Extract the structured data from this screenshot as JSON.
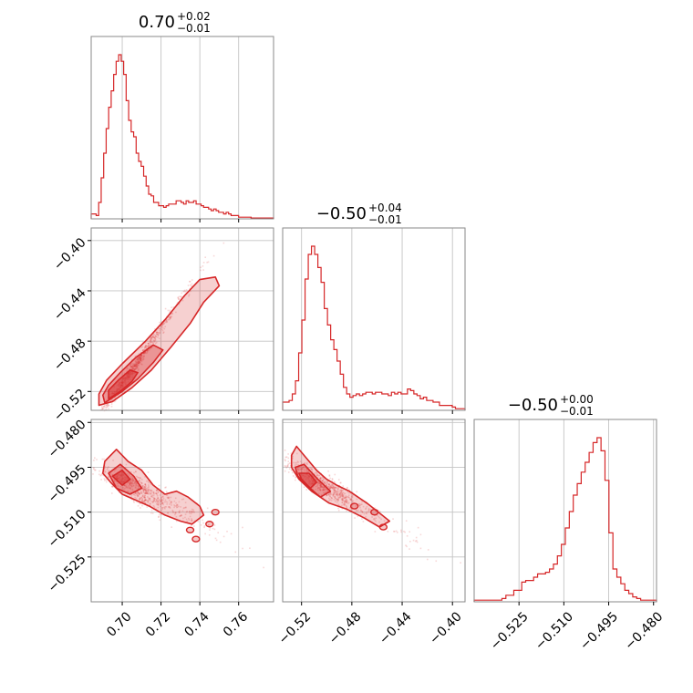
{
  "chart_data": {
    "type": "corner",
    "color": "#d62728",
    "parameters": [
      {
        "title": {
          "median": "0.70",
          "plus": "+0.02",
          "minus": "−0.01"
        },
        "range": [
          0.684,
          0.778
        ],
        "ticks": [
          0.7,
          0.72,
          0.74,
          0.76
        ],
        "tick_labels": [
          "0.70",
          "0.72",
          "0.74",
          "0.76"
        ]
      },
      {
        "title": {
          "median": "−0.50",
          "plus": "+0.04",
          "minus": "−0.01"
        },
        "range": [
          -0.535,
          -0.39
        ],
        "ticks": [
          -0.52,
          -0.48,
          -0.44,
          -0.4
        ],
        "tick_labels": [
          "−0.52",
          "−0.48",
          "−0.44",
          "−0.40"
        ]
      },
      {
        "title": {
          "median": "−0.50",
          "plus": "+0.00",
          "minus": "−0.01"
        },
        "range": [
          -0.54,
          -0.479
        ],
        "ticks": [
          -0.525,
          -0.51,
          -0.495,
          -0.48
        ],
        "tick_labels": [
          "−0.525",
          "−0.510",
          "−0.495",
          "−0.480"
        ]
      }
    ],
    "histograms": [
      {
        "param": 0,
        "counts": [
          0.03,
          0.03,
          0.02,
          0.1,
          0.25,
          0.4,
          0.55,
          0.68,
          0.78,
          0.88,
          0.96,
          1.0,
          0.96,
          0.88,
          0.72,
          0.6,
          0.53,
          0.5,
          0.4,
          0.35,
          0.32,
          0.26,
          0.2,
          0.15,
          0.14,
          0.1,
          0.1,
          0.08,
          0.08,
          0.07,
          0.08,
          0.09,
          0.09,
          0.09,
          0.11,
          0.11,
          0.1,
          0.09,
          0.11,
          0.1,
          0.1,
          0.11,
          0.09,
          0.09,
          0.08,
          0.07,
          0.07,
          0.06,
          0.05,
          0.06,
          0.05,
          0.04,
          0.04,
          0.03,
          0.04,
          0.03,
          0.02,
          0.02,
          0.02,
          0.01,
          0.01,
          0.01,
          0.01,
          0.01,
          0.005,
          0.005,
          0.005,
          0.005,
          0.005,
          0.005,
          0.005,
          0.005,
          0.005
        ]
      },
      {
        "param": 1,
        "counts": [
          0.05,
          0.05,
          0.06,
          0.1,
          0.18,
          0.35,
          0.55,
          0.8,
          0.95,
          1.0,
          0.95,
          0.87,
          0.78,
          0.62,
          0.52,
          0.43,
          0.37,
          0.3,
          0.22,
          0.14,
          0.1,
          0.08,
          0.09,
          0.1,
          0.09,
          0.1,
          0.11,
          0.11,
          0.1,
          0.11,
          0.11,
          0.1,
          0.1,
          0.09,
          0.11,
          0.1,
          0.11,
          0.1,
          0.1,
          0.13,
          0.12,
          0.1,
          0.09,
          0.07,
          0.08,
          0.06,
          0.06,
          0.05,
          0.05,
          0.03,
          0.03,
          0.03,
          0.03,
          0.02,
          0.01,
          0.01,
          0.01
        ]
      },
      {
        "param": 2,
        "counts": [
          0.01,
          0.01,
          0.01,
          0.01,
          0.01,
          0.01,
          0.01,
          0.02,
          0.04,
          0.04,
          0.07,
          0.07,
          0.12,
          0.13,
          0.13,
          0.15,
          0.17,
          0.17,
          0.18,
          0.2,
          0.23,
          0.28,
          0.35,
          0.45,
          0.55,
          0.65,
          0.72,
          0.79,
          0.85,
          0.91,
          0.97,
          1.0,
          0.92,
          0.74,
          0.42,
          0.2,
          0.15,
          0.11,
          0.07,
          0.05,
          0.03,
          0.02,
          0.01,
          0.01,
          0.01,
          0.01
        ]
      }
    ],
    "joints": [
      {
        "x_param": 0,
        "y_param": 1,
        "outer_contour": [
          [
            0.688,
            -0.531
          ],
          [
            0.695,
            -0.528
          ],
          [
            0.705,
            -0.517
          ],
          [
            0.715,
            -0.503
          ],
          [
            0.725,
            -0.485
          ],
          [
            0.735,
            -0.466
          ],
          [
            0.742,
            -0.449
          ],
          [
            0.75,
            -0.436
          ],
          [
            0.748,
            -0.429
          ],
          [
            0.74,
            -0.431
          ],
          [
            0.732,
            -0.444
          ],
          [
            0.722,
            -0.463
          ],
          [
            0.712,
            -0.48
          ],
          [
            0.7,
            -0.498
          ],
          [
            0.692,
            -0.511
          ],
          [
            0.688,
            -0.522
          ]
        ],
        "mid_contour": [
          [
            0.691,
            -0.529
          ],
          [
            0.7,
            -0.52
          ],
          [
            0.708,
            -0.51
          ],
          [
            0.716,
            -0.497
          ],
          [
            0.721,
            -0.487
          ],
          [
            0.716,
            -0.483
          ],
          [
            0.707,
            -0.493
          ],
          [
            0.699,
            -0.505
          ],
          [
            0.693,
            -0.515
          ],
          [
            0.69,
            -0.523
          ]
        ],
        "inner_contour": [
          [
            0.693,
            -0.526
          ],
          [
            0.699,
            -0.52
          ],
          [
            0.705,
            -0.512
          ],
          [
            0.708,
            -0.505
          ],
          [
            0.704,
            -0.503
          ],
          [
            0.698,
            -0.511
          ],
          [
            0.693,
            -0.519
          ]
        ],
        "center": [
          0.702,
          -0.508
        ],
        "spread": [
          0.0085,
          0.0195
        ],
        "correlation": 0.97
      },
      {
        "x_param": 0,
        "y_param": 2,
        "outer_contour": [
          [
            0.691,
            -0.493
          ],
          [
            0.697,
            -0.489
          ],
          [
            0.703,
            -0.493
          ],
          [
            0.71,
            -0.496
          ],
          [
            0.716,
            -0.501
          ],
          [
            0.722,
            -0.504
          ],
          [
            0.728,
            -0.503
          ],
          [
            0.734,
            -0.505
          ],
          [
            0.74,
            -0.508
          ],
          [
            0.742,
            -0.511
          ],
          [
            0.736,
            -0.514
          ],
          [
            0.73,
            -0.513
          ],
          [
            0.722,
            -0.511
          ],
          [
            0.714,
            -0.508
          ],
          [
            0.707,
            -0.506
          ],
          [
            0.7,
            -0.504
          ],
          [
            0.694,
            -0.5
          ],
          [
            0.69,
            -0.497
          ]
        ],
        "mid_contour": [
          [
            0.693,
            -0.497
          ],
          [
            0.699,
            -0.494
          ],
          [
            0.706,
            -0.498
          ],
          [
            0.71,
            -0.502
          ],
          [
            0.704,
            -0.504
          ],
          [
            0.697,
            -0.502
          ]
        ],
        "inner_contour": [
          [
            0.695,
            -0.498
          ],
          [
            0.7,
            -0.496
          ],
          [
            0.704,
            -0.499
          ],
          [
            0.7,
            -0.501
          ]
        ],
        "islands": [
          [
            0.735,
            -0.516
          ],
          [
            0.745,
            -0.514
          ],
          [
            0.748,
            -0.51
          ],
          [
            0.738,
            -0.519
          ]
        ],
        "center": [
          0.705,
          -0.501
        ],
        "spread": [
          0.0095,
          0.005
        ],
        "correlation": -0.65
      },
      {
        "x_param": 1,
        "y_param": 2,
        "outer_contour": [
          [
            -0.528,
            -0.491
          ],
          [
            -0.524,
            -0.488
          ],
          [
            -0.516,
            -0.492
          ],
          [
            -0.508,
            -0.496
          ],
          [
            -0.5,
            -0.499
          ],
          [
            -0.492,
            -0.501
          ],
          [
            -0.482,
            -0.503
          ],
          [
            -0.468,
            -0.507
          ],
          [
            -0.456,
            -0.511
          ],
          [
            -0.45,
            -0.513
          ],
          [
            -0.458,
            -0.515
          ],
          [
            -0.47,
            -0.512
          ],
          [
            -0.484,
            -0.509
          ],
          [
            -0.498,
            -0.507
          ],
          [
            -0.512,
            -0.503
          ],
          [
            -0.522,
            -0.499
          ],
          [
            -0.528,
            -0.495
          ]
        ],
        "mid_contour": [
          [
            -0.525,
            -0.495
          ],
          [
            -0.518,
            -0.494
          ],
          [
            -0.507,
            -0.499
          ],
          [
            -0.497,
            -0.503
          ],
          [
            -0.505,
            -0.505
          ],
          [
            -0.516,
            -0.501
          ],
          [
            -0.523,
            -0.498
          ]
        ],
        "inner_contour": [
          [
            -0.522,
            -0.497
          ],
          [
            -0.514,
            -0.497
          ],
          [
            -0.508,
            -0.5
          ],
          [
            -0.513,
            -0.502
          ],
          [
            -0.52,
            -0.499
          ]
        ],
        "islands": [
          [
            -0.478,
            -0.508
          ],
          [
            -0.462,
            -0.51
          ],
          [
            -0.455,
            -0.515
          ]
        ],
        "center": [
          -0.506,
          -0.5
        ],
        "spread": [
          0.016,
          0.0052
        ],
        "correlation": -0.8
      }
    ],
    "grid": true,
    "legend": "none"
  }
}
